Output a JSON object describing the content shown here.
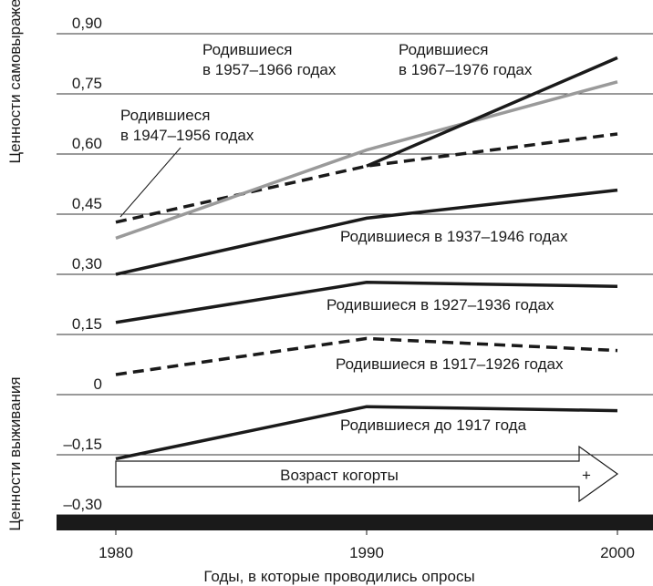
{
  "chart_data": {
    "type": "line",
    "y_label_top": "Ценности самовыражения",
    "y_label_bottom": "Ценности выживания",
    "x_label": "Годы, в которые проводились опросы",
    "annotations": [
      "Возраст когорты",
      "+"
    ],
    "x": [
      1980,
      1990,
      2000
    ],
    "xlim": [
      1980,
      2000
    ],
    "xticks": [
      1980,
      1990,
      2000
    ],
    "ylim": [
      -0.3,
      0.9
    ],
    "yticks": [
      {
        "value": 0.9,
        "label": "0,90"
      },
      {
        "value": 0.75,
        "label": "0,75"
      },
      {
        "value": 0.6,
        "label": "0,60"
      },
      {
        "value": 0.45,
        "label": "0,45"
      },
      {
        "value": 0.3,
        "label": "0,30"
      },
      {
        "value": 0.15,
        "label": "0,15"
      },
      0,
      {
        "value": -0.15,
        "label": "–0,15"
      },
      {
        "value": -0.3,
        "label": "–0,30"
      }
    ],
    "grid": true,
    "series": [
      {
        "name": "Родившиеся до 1917 года",
        "color": "#1a1a1a",
        "dash": false,
        "values": [
          -0.16,
          -0.03,
          -0.04
        ]
      },
      {
        "name": "Родившиеся в 1917–1926 годах",
        "color": "#1a1a1a",
        "dash": true,
        "values": [
          0.05,
          0.14,
          0.11
        ]
      },
      {
        "name": "Родившиеся в 1927–1936 годах",
        "color": "#1a1a1a",
        "dash": false,
        "values": [
          0.18,
          0.28,
          0.27
        ]
      },
      {
        "name": "Родившиеся в 1937–1946 годах",
        "color": "#1a1a1a",
        "dash": false,
        "values": [
          0.3,
          0.44,
          0.51
        ]
      },
      {
        "name": "Родившиеся в 1947–1956 годах",
        "color": "#1a1a1a",
        "dash": true,
        "values": [
          0.43,
          0.57,
          0.65
        ]
      },
      {
        "name": "Родившиеся в 1957–1966 годах",
        "color": "#9a9a9a",
        "dash": false,
        "values": [
          0.39,
          0.61,
          0.78
        ]
      },
      {
        "name": "Родившиеся в 1967–1976 годах",
        "color": "#1a1a1a",
        "dash": false,
        "values": [
          null,
          0.57,
          0.84
        ]
      }
    ]
  }
}
